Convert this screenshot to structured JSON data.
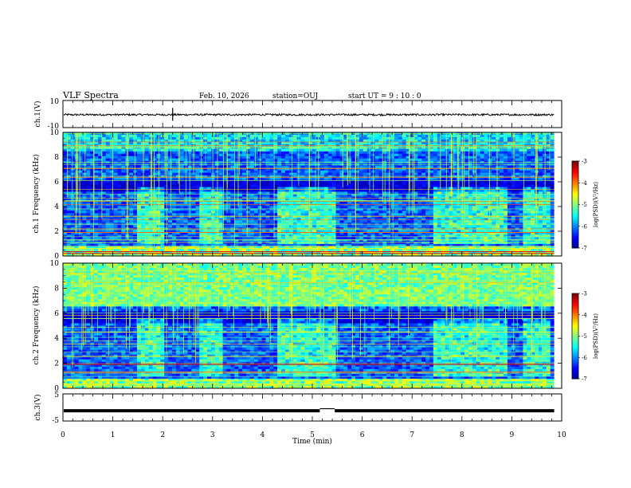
{
  "header": {
    "title": "VLF Spectra",
    "date": "Feb. 10, 2026",
    "station": "station=OUJ",
    "start": "start  UT  =   9 : 10 : 0"
  },
  "chart_data": [
    {
      "panel": "ch1-waveform",
      "type": "line",
      "ylabel": "ch.1(V)",
      "ylim": [
        -10,
        10
      ],
      "yticks": [
        "10",
        "-10"
      ],
      "baseline_v": -0.5,
      "spike_at_min": 2.2
    },
    {
      "panel": "ch1-spectrogram",
      "type": "heatmap",
      "ylabel": "ch.1 Frequency (kHz)",
      "ylim": [
        0,
        10
      ],
      "yticks": [
        "0",
        "2",
        "4",
        "6",
        "8",
        "10"
      ],
      "bursts_min": [
        [
          1.5,
          2.0
        ],
        [
          2.75,
          3.2
        ],
        [
          4.3,
          5.5
        ],
        [
          7.4,
          8.9
        ],
        [
          9.25,
          9.8
        ]
      ],
      "colorbar": {
        "label": "log(PSD)(V²/Hz)",
        "ticks": [
          "-3",
          "-4",
          "-5",
          "-6",
          "-7"
        ],
        "range": [
          -7,
          -3
        ]
      }
    },
    {
      "panel": "ch2-spectrogram",
      "type": "heatmap",
      "ylabel": "ch.2 Frequency (kHz)",
      "ylim": [
        0,
        10
      ],
      "yticks": [
        "0",
        "2",
        "4",
        "6",
        "8",
        "10"
      ],
      "bursts_min": [
        [
          1.5,
          2.0
        ],
        [
          2.75,
          3.2
        ],
        [
          4.3,
          5.5
        ],
        [
          7.4,
          8.9
        ],
        [
          9.25,
          9.8
        ]
      ],
      "colorbar": {
        "label": "log(PSD)(V²/Hz)",
        "ticks": [
          "-3",
          "-4",
          "-5",
          "-6",
          "-7"
        ],
        "range": [
          -7,
          -3
        ]
      }
    },
    {
      "panel": "ch3-waveform",
      "type": "line",
      "ylabel": "ch.3(V)",
      "ylim": [
        -5,
        5
      ],
      "yticks": [
        "5",
        "-5"
      ],
      "baseline_v": -1.2,
      "gap_min": [
        5.15,
        5.45
      ]
    }
  ],
  "xaxis": {
    "label": "Time  (min)",
    "range": [
      0,
      10
    ],
    "ticks": [
      "0",
      "1",
      "2",
      "3",
      "4",
      "5",
      "6",
      "7",
      "8",
      "9",
      "10"
    ],
    "data_end_min": 9.85
  },
  "colors": {
    "jet": [
      "#00008f",
      "#0000ff",
      "#0080ff",
      "#00ffff",
      "#80ff80",
      "#ffff00",
      "#ff8000",
      "#ff0000",
      "#800000"
    ]
  }
}
